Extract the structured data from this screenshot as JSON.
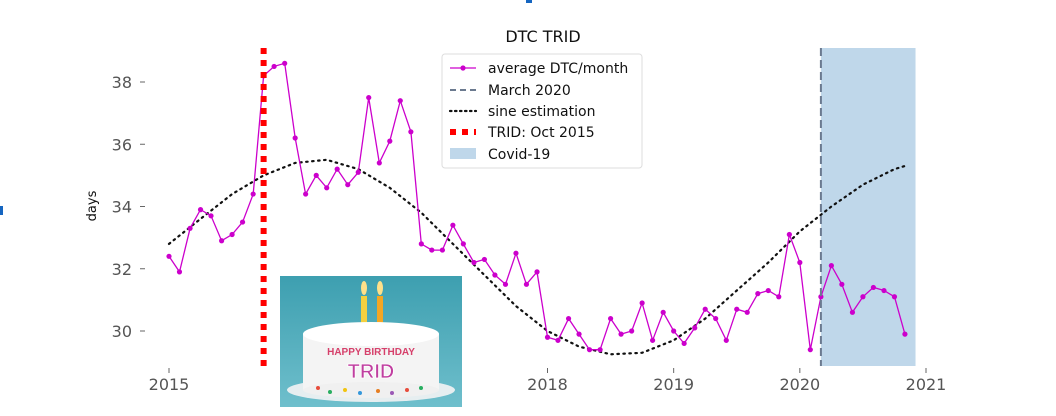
{
  "chart_data": {
    "type": "line",
    "title": "DTC TRID",
    "xlabel": "",
    "ylabel": "days",
    "xlim": [
      2014.85,
      2021.3
    ],
    "ylim": [
      28.8,
      39.2
    ],
    "x_ticks": [
      2015,
      2018,
      2019,
      2020,
      2021
    ],
    "x_tick_labels": [
      "2015",
      "2018",
      "2019",
      "2020",
      "2021"
    ],
    "y_ticks": [
      30,
      32,
      34,
      36,
      38
    ],
    "y_tick_labels": [
      "30",
      "32",
      "34",
      "36",
      "38"
    ],
    "grid": false,
    "legend_position": "top-center",
    "series": [
      {
        "name": "average DTC/month",
        "style": "line-with-dots",
        "color": "#cc00cc",
        "x": [
          2015.0,
          2015.083,
          2015.167,
          2015.25,
          2015.333,
          2015.417,
          2015.5,
          2015.583,
          2015.667,
          2015.75,
          2015.833,
          2015.917,
          2016.0,
          2016.083,
          2016.167,
          2016.25,
          2016.333,
          2016.417,
          2016.5,
          2016.583,
          2016.667,
          2016.75,
          2016.833,
          2016.917,
          2017.0,
          2017.083,
          2017.167,
          2017.25,
          2017.333,
          2017.417,
          2017.5,
          2017.583,
          2017.667,
          2017.75,
          2017.833,
          2017.917,
          2018.0,
          2018.083,
          2018.167,
          2018.25,
          2018.333,
          2018.417,
          2018.5,
          2018.583,
          2018.667,
          2018.75,
          2018.833,
          2018.917,
          2019.0,
          2019.083,
          2019.167,
          2019.25,
          2019.333,
          2019.417,
          2019.5,
          2019.583,
          2019.667,
          2019.75,
          2019.833,
          2019.917,
          2020.0,
          2020.083,
          2020.167,
          2020.25,
          2020.333,
          2020.417,
          2020.5,
          2020.583,
          2020.667,
          2020.75,
          2020.833
        ],
        "values": [
          32.4,
          31.9,
          33.3,
          33.9,
          33.7,
          32.9,
          33.1,
          33.5,
          34.4,
          38.2,
          38.5,
          38.6,
          36.2,
          34.4,
          35.0,
          34.6,
          35.2,
          34.7,
          35.1,
          37.5,
          35.4,
          36.1,
          37.4,
          36.4,
          32.8,
          32.6,
          32.6,
          33.4,
          32.8,
          32.2,
          32.3,
          31.8,
          31.5,
          32.5,
          31.5,
          31.9,
          29.8,
          29.7,
          30.4,
          29.9,
          29.4,
          29.4,
          30.4,
          29.9,
          30.0,
          30.9,
          29.7,
          30.6,
          30.0,
          29.6,
          30.1,
          30.7,
          30.4,
          29.7,
          30.7,
          30.6,
          31.2,
          31.3,
          31.1,
          33.1,
          32.2,
          29.4,
          31.1,
          32.1,
          31.5,
          30.6,
          31.1,
          31.4,
          31.3,
          31.1,
          29.9
        ]
      },
      {
        "name": "March 2020",
        "style": "vertical-dashed",
        "color": "#6b7a8f",
        "x": 2020.167
      },
      {
        "name": "sine estimation",
        "style": "dotted",
        "color": "#111111",
        "x": [
          2015.0,
          2015.25,
          2015.5,
          2015.75,
          2016.0,
          2016.25,
          2016.5,
          2016.75,
          2017.0,
          2017.25,
          2017.5,
          2017.75,
          2018.0,
          2018.25,
          2018.5,
          2018.75,
          2019.0,
          2019.25,
          2019.5,
          2019.75,
          2020.0,
          2020.25,
          2020.5,
          2020.75,
          2020.833
        ],
        "values": [
          32.8,
          33.6,
          34.4,
          35.0,
          35.4,
          35.5,
          35.2,
          34.6,
          33.8,
          32.8,
          31.8,
          30.8,
          30.0,
          29.5,
          29.25,
          29.3,
          29.7,
          30.4,
          31.3,
          32.2,
          33.2,
          34.0,
          34.7,
          35.2,
          35.3
        ]
      },
      {
        "name": "TRID: Oct 2015",
        "style": "vertical-thick-dotted",
        "color": "#ff0000",
        "x": 2015.75
      },
      {
        "name": "Covid-19",
        "style": "shaded-span",
        "color": "#a9c9e3",
        "x_range": [
          2020.167,
          2020.917
        ]
      }
    ]
  },
  "decoration": {
    "image_name": "birthday-cake",
    "cake_text_line1": "HAPPY BIRTHDAY",
    "cake_text_line2": "TRID"
  }
}
